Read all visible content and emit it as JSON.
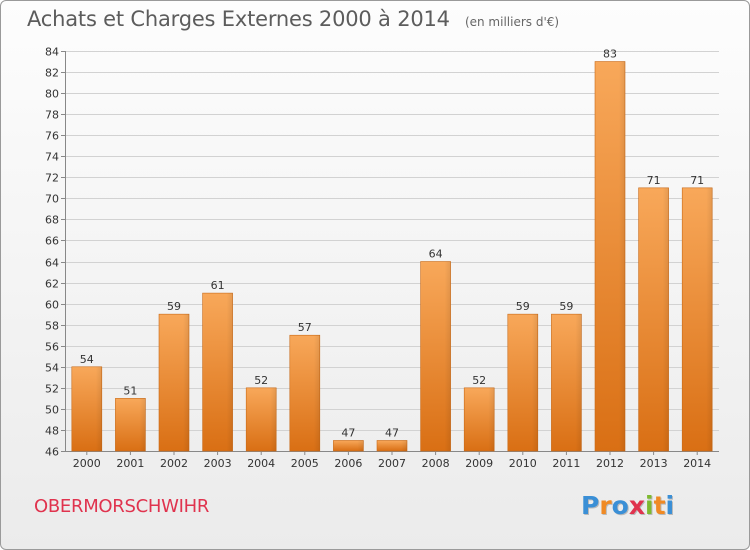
{
  "chart_data": {
    "type": "bar",
    "title": "Achats et Charges Externes 2000 à 2014",
    "subtitle": "(en milliers d'€)",
    "categories": [
      "2000",
      "2001",
      "2002",
      "2003",
      "2004",
      "2005",
      "2006",
      "2007",
      "2008",
      "2009",
      "2010",
      "2011",
      "2012",
      "2013",
      "2014"
    ],
    "values": [
      54,
      51,
      59,
      61,
      52,
      57,
      47,
      47,
      64,
      52,
      59,
      59,
      83,
      71,
      71
    ],
    "ylim": [
      46,
      84
    ],
    "yticks": [
      46,
      48,
      50,
      52,
      54,
      56,
      58,
      60,
      62,
      64,
      66,
      68,
      70,
      72,
      74,
      76,
      78,
      80,
      82,
      84
    ],
    "xlabel": "",
    "ylabel": "",
    "grid": true,
    "bar_color": "#f0913a"
  },
  "footer": {
    "commune": "OBERMORSCHWIHR",
    "commune_color": "#e0334e",
    "logo": {
      "text": "Proxiti",
      "letters": [
        {
          "ch": "P",
          "color": "#3a8fd6"
        },
        {
          "ch": "r",
          "color": "#f08a24"
        },
        {
          "ch": "o",
          "color": "#3a8fd6"
        },
        {
          "ch": "x",
          "color": "#e0334e"
        },
        {
          "ch": "i",
          "color": "#7dba2f"
        },
        {
          "ch": "t",
          "color": "#f08a24"
        },
        {
          "ch": "i",
          "color": "#3a8fd6"
        }
      ]
    }
  }
}
